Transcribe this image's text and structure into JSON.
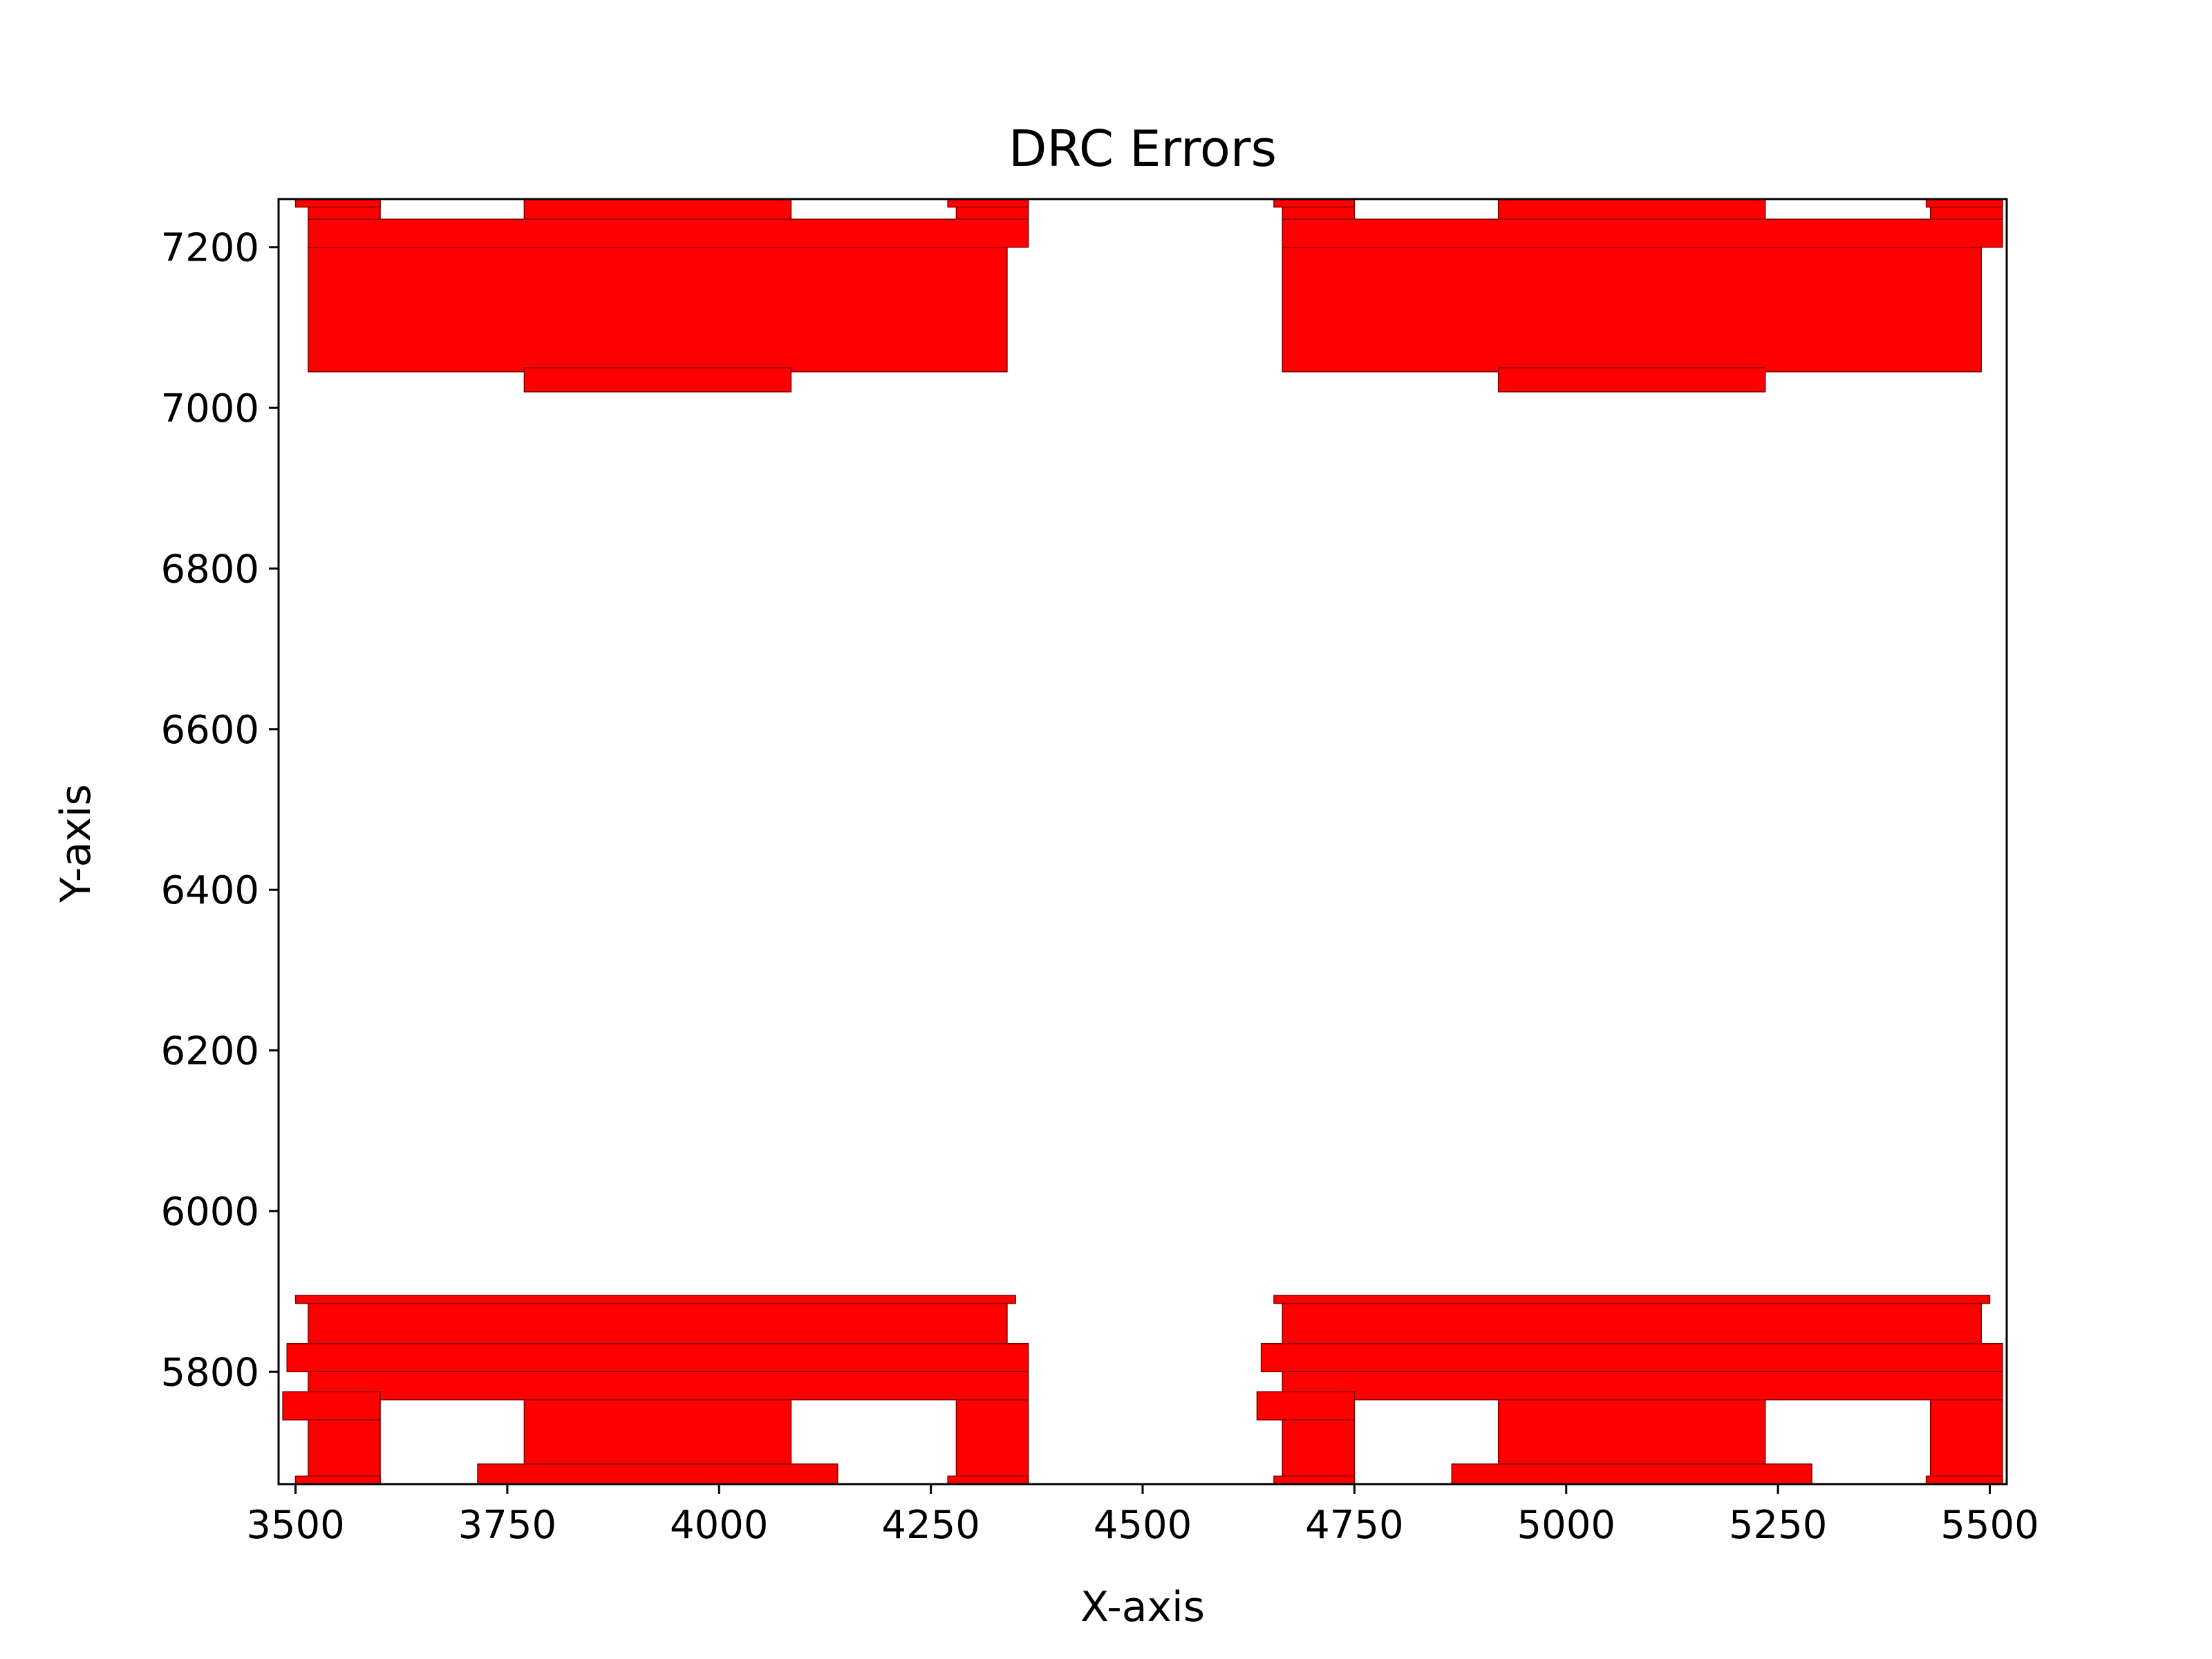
{
  "chart_data": {
    "type": "rect-plot",
    "title": "DRC Errors",
    "xlabel": "X-axis",
    "ylabel": "Y-axis",
    "xlim": [
      3480,
      5520
    ],
    "ylim": [
      5660,
      7260
    ],
    "xticks": [
      3500,
      3750,
      4000,
      4250,
      4500,
      4750,
      5000,
      5250,
      5500
    ],
    "yticks": [
      5800,
      6000,
      6200,
      6400,
      6600,
      6800,
      7000,
      7200
    ],
    "grid": false,
    "fill_color": "#ff0000",
    "edge_color": "#800000",
    "rects": [
      {
        "x0": 3515,
        "x1": 4340,
        "y0": 7045,
        "y1": 7200
      },
      {
        "x0": 3770,
        "x1": 4085,
        "y0": 7020,
        "y1": 7050
      },
      {
        "x0": 3515,
        "x1": 4365,
        "y0": 7200,
        "y1": 7235
      },
      {
        "x0": 3515,
        "x1": 3600,
        "y0": 7235,
        "y1": 7255
      },
      {
        "x0": 3770,
        "x1": 4085,
        "y0": 7235,
        "y1": 7260
      },
      {
        "x0": 4280,
        "x1": 4365,
        "y0": 7235,
        "y1": 7260
      },
      {
        "x0": 3500,
        "x1": 3600,
        "y0": 7250,
        "y1": 7260
      },
      {
        "x0": 4270,
        "x1": 4365,
        "y0": 7250,
        "y1": 7260
      },
      {
        "x0": 4665,
        "x1": 5490,
        "y0": 7045,
        "y1": 7200
      },
      {
        "x0": 4920,
        "x1": 5235,
        "y0": 7020,
        "y1": 7050
      },
      {
        "x0": 4665,
        "x1": 5515,
        "y0": 7200,
        "y1": 7235
      },
      {
        "x0": 4665,
        "x1": 4750,
        "y0": 7235,
        "y1": 7255
      },
      {
        "x0": 4920,
        "x1": 5235,
        "y0": 7235,
        "y1": 7260
      },
      {
        "x0": 5430,
        "x1": 5515,
        "y0": 7235,
        "y1": 7260
      },
      {
        "x0": 4655,
        "x1": 4750,
        "y0": 7250,
        "y1": 7260
      },
      {
        "x0": 5425,
        "x1": 5515,
        "y0": 7250,
        "y1": 7260
      },
      {
        "x0": 3500,
        "x1": 4350,
        "y0": 5885,
        "y1": 5895
      },
      {
        "x0": 3515,
        "x1": 4340,
        "y0": 5835,
        "y1": 5885
      },
      {
        "x0": 3490,
        "x1": 4365,
        "y0": 5800,
        "y1": 5835
      },
      {
        "x0": 3515,
        "x1": 4365,
        "y0": 5765,
        "y1": 5800
      },
      {
        "x0": 3485,
        "x1": 3600,
        "y0": 5740,
        "y1": 5775
      },
      {
        "x0": 3515,
        "x1": 3600,
        "y0": 5660,
        "y1": 5740
      },
      {
        "x0": 3770,
        "x1": 4085,
        "y0": 5685,
        "y1": 5765
      },
      {
        "x0": 3715,
        "x1": 4140,
        "y0": 5660,
        "y1": 5685
      },
      {
        "x0": 4280,
        "x1": 4365,
        "y0": 5660,
        "y1": 5765
      },
      {
        "x0": 4270,
        "x1": 4365,
        "y0": 5660,
        "y1": 5670
      },
      {
        "x0": 3500,
        "x1": 3600,
        "y0": 5660,
        "y1": 5670
      },
      {
        "x0": 4655,
        "x1": 5500,
        "y0": 5885,
        "y1": 5895
      },
      {
        "x0": 4665,
        "x1": 5490,
        "y0": 5835,
        "y1": 5885
      },
      {
        "x0": 4640,
        "x1": 5515,
        "y0": 5800,
        "y1": 5835
      },
      {
        "x0": 4665,
        "x1": 5515,
        "y0": 5765,
        "y1": 5800
      },
      {
        "x0": 4635,
        "x1": 4750,
        "y0": 5740,
        "y1": 5775
      },
      {
        "x0": 4665,
        "x1": 4750,
        "y0": 5660,
        "y1": 5740
      },
      {
        "x0": 4920,
        "x1": 5235,
        "y0": 5685,
        "y1": 5765
      },
      {
        "x0": 4865,
        "x1": 5290,
        "y0": 5660,
        "y1": 5685
      },
      {
        "x0": 5430,
        "x1": 5515,
        "y0": 5660,
        "y1": 5765
      },
      {
        "x0": 5425,
        "x1": 5515,
        "y0": 5660,
        "y1": 5670
      },
      {
        "x0": 4655,
        "x1": 4750,
        "y0": 5660,
        "y1": 5670
      }
    ]
  }
}
